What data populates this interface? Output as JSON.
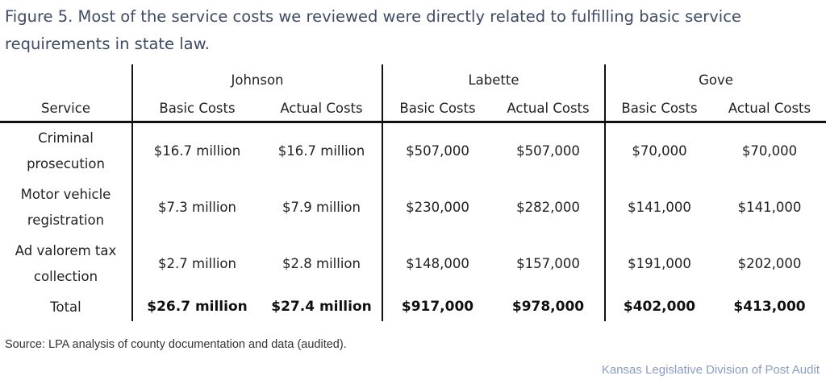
{
  "caption": "Figure 5. Most of the service costs we reviewed were directly related to fulfilling basic service requirements in state law.",
  "table": {
    "service_header": "Service",
    "counties": [
      "Johnson",
      "Labette",
      "Gove"
    ],
    "sub_headers": [
      "Basic Costs",
      "Actual Costs",
      "Basic Costs",
      "Actual Costs",
      "Basic Costs",
      "Actual Costs"
    ],
    "rows": [
      {
        "service": "Criminal prosecution",
        "values": [
          "$16.7 million",
          "$16.7 million",
          "$507,000",
          "$507,000",
          "$70,000",
          "$70,000"
        ]
      },
      {
        "service": "Motor vehicle registration",
        "values": [
          "$7.3 million",
          "$7.9 million",
          "$230,000",
          "$282,000",
          "$141,000",
          "$141,000"
        ]
      },
      {
        "service": "Ad valorem tax collection",
        "values": [
          "$2.7 million",
          "$2.8 million",
          "$148,000",
          "$157,000",
          "$191,000",
          "$202,000"
        ]
      }
    ],
    "total": {
      "service": "Total",
      "values": [
        "$26.7 million",
        "$27.4 million",
        "$917,000",
        "$978,000",
        "$402,000",
        "$413,000"
      ]
    }
  },
  "source": "Source: LPA analysis of county documentation and data (audited).",
  "credit": "Kansas Legislative Division of Post Audit",
  "colors": {
    "caption": "#3d4a68",
    "credit": "#8a9cc8",
    "rules": "#111111"
  }
}
